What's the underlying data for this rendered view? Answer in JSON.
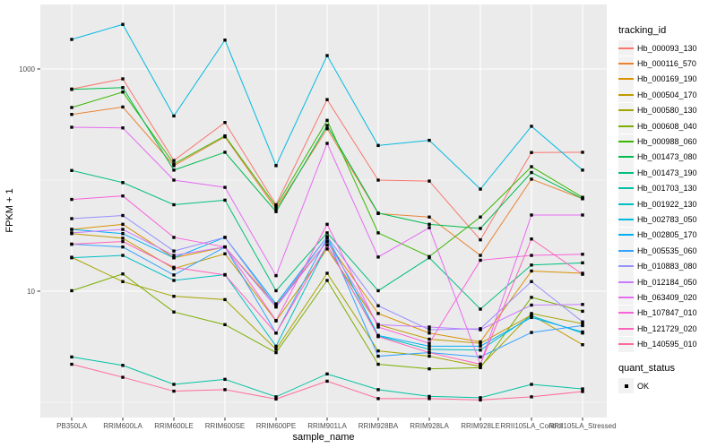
{
  "figure": {
    "y_axis_title": "FPKM + 1",
    "x_axis_title": "sample_name",
    "legend1_title": "tracking_id",
    "legend2_title": "quant_status",
    "legend2_item": "OK",
    "colors": {
      "panel_bg": "#EBEBEB",
      "grid": "#FFFFFF",
      "axis_text": "#4D4D4D",
      "tick_mark": "#333333",
      "legend_key_bg": "#F2F2F2",
      "point": "#000000"
    }
  },
  "chart_data": {
    "type": "line",
    "x_type": "categorical",
    "y_scale": "log10",
    "xlabel": "sample_name",
    "ylabel": "FPKM + 1",
    "y_ticks": [
      10,
      1000
    ],
    "y_minor_ticks": [
      1,
      100
    ],
    "ylim": [
      1,
      3800
    ],
    "grid": true,
    "legend_position": "right",
    "point_status": "OK",
    "categories": [
      "PB350LA",
      "RRIM600LA",
      "RRIM600LE",
      "RRIM600SE",
      "RRIM600PE",
      "RRIM901LA",
      "RRIM928BA",
      "RRIM928LA",
      "RRIM928LE",
      "RRII105LA_Control",
      "RRII105LA_Stressed"
    ],
    "series": [
      {
        "name": "Hb_000093_130",
        "color": "#F8766D",
        "values": [
          660,
          815,
          150,
          330,
          60,
          530,
          100,
          98,
          29,
          177,
          178
        ]
      },
      {
        "name": "Hb_000116_570",
        "color": "#EA8331",
        "values": [
          390,
          455,
          135,
          245,
          55,
          290,
          50,
          46.5,
          21,
          102,
          68
        ]
      },
      {
        "name": "Hb_000169_190",
        "color": "#D89000",
        "values": [
          36,
          40,
          20,
          25,
          7.5,
          28,
          6.3,
          4.2,
          3.5,
          15.2,
          14.5
        ]
      },
      {
        "name": "Hb_000504_170",
        "color": "#C09B00",
        "values": [
          33,
          30,
          16,
          21.7,
          5.4,
          24,
          5.0,
          3.7,
          3.4,
          6.1,
          3.3
        ]
      },
      {
        "name": "Hb_000580_130",
        "color": "#A3A500",
        "values": [
          20.2,
          12.2,
          9.0,
          8.4,
          3.0,
          14.5,
          2.9,
          2.6,
          2.1,
          6.3,
          5.1
        ]
      },
      {
        "name": "Hb_000608_040",
        "color": "#7CAE00",
        "values": [
          10.1,
          14.3,
          6.5,
          5.0,
          2.8,
          12.5,
          2.2,
          2.0,
          2.05,
          8.8,
          6.6
        ]
      },
      {
        "name": "Hb_000988_060",
        "color": "#39B600",
        "values": [
          450,
          620,
          140,
          250,
          58,
          345,
          33.5,
          20.5,
          46.5,
          132,
          70
        ]
      },
      {
        "name": "Hb_001473_080",
        "color": "#00BB4E",
        "values": [
          655,
          680,
          123,
          178,
          52,
          310,
          50.5,
          40,
          36.7,
          117,
          68
        ]
      },
      {
        "name": "Hb_001473_190",
        "color": "#00BF7D",
        "values": [
          122,
          95,
          60,
          66,
          10.1,
          33.5,
          10.1,
          20,
          6.9,
          17.2,
          18
        ]
      },
      {
        "name": "Hb_001703_130",
        "color": "#00C1A3",
        "values": [
          2.56,
          2.15,
          1.45,
          1.61,
          1.12,
          1.8,
          1.3,
          1.13,
          1.1,
          1.45,
          1.32
        ]
      },
      {
        "name": "Hb_001922_130",
        "color": "#00BFC4",
        "values": [
          20,
          21,
          12.5,
          14.1,
          3.2,
          26,
          3.95,
          3.0,
          2.95,
          6.0,
          4.2
        ]
      },
      {
        "name": "Hb_002783_050",
        "color": "#00BAE0",
        "values": [
          1845,
          2520,
          378,
          1820,
          135,
          1320,
          205,
          228,
          83,
          305,
          123
        ]
      },
      {
        "name": "Hb_002805_170",
        "color": "#00B0F6",
        "values": [
          36,
          33,
          20,
          30.5,
          7.7,
          31,
          4.0,
          3.2,
          3.2,
          5.8,
          4.3
        ]
      },
      {
        "name": "Hb_005535_060",
        "color": "#35A2FF",
        "values": [
          26.5,
          25,
          14,
          25,
          4.2,
          30,
          2.6,
          2.8,
          2.56,
          4.25,
          4.9
        ]
      },
      {
        "name": "Hb_010883_080",
        "color": "#9590FF",
        "values": [
          45,
          48,
          23,
          30.5,
          7.3,
          31,
          7.4,
          4.5,
          4.6,
          12.2,
          5.3
        ]
      },
      {
        "name": "Hb_012184_050",
        "color": "#C77CFF",
        "values": [
          33.5,
          36,
          21,
          25,
          7.2,
          28,
          5.0,
          4.76,
          4.5,
          7.5,
          7.6
        ]
      },
      {
        "name": "Hb_063409_020",
        "color": "#E76BF3",
        "values": [
          299,
          295,
          100,
          86,
          13.8,
          214,
          20.3,
          37.3,
          2.2,
          48.5,
          48.5
        ]
      },
      {
        "name": "Hb_107847_010",
        "color": "#FA62DB",
        "values": [
          67,
          72,
          30.5,
          25,
          5.45,
          40,
          4.76,
          3.4,
          19,
          21,
          21.5
        ]
      },
      {
        "name": "Hb_121729_020",
        "color": "#FF62BC",
        "values": [
          26.5,
          28,
          16.4,
          14,
          4.2,
          26,
          3.9,
          2.8,
          2.2,
          29.5,
          14.2
        ]
      },
      {
        "name": "Hb_140595_010",
        "color": "#FF6A98",
        "values": [
          2.2,
          1.68,
          1.26,
          1.3,
          1.07,
          1.55,
          1.08,
          1.08,
          1.05,
          1.12,
          1.25
        ]
      }
    ]
  }
}
